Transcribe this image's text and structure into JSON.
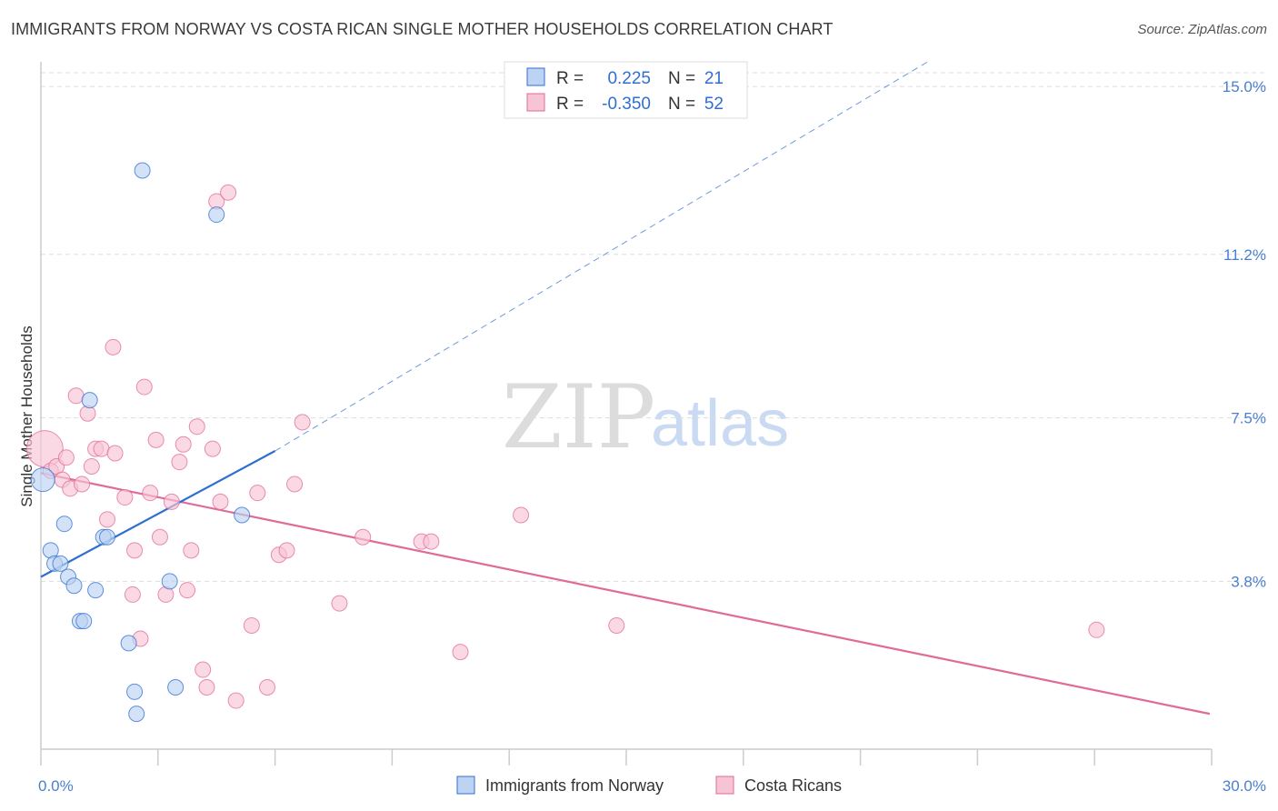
{
  "header": {
    "title": "IMMIGRANTS FROM NORWAY VS COSTA RICAN SINGLE MOTHER HOUSEHOLDS CORRELATION CHART",
    "source": "Source: ZipAtlas.com"
  },
  "watermark": {
    "zip": "ZIP",
    "atlas": "atlas"
  },
  "colors": {
    "blue": "#2f6fd0",
    "blue_fill": "#bcd3f3",
    "pink": "#e06a98",
    "pink_fill": "#f7c4d5",
    "tick_text": "#4a7fd0",
    "grid": "#dddddd"
  },
  "legend": {
    "rows": [
      {
        "r_label": "R =",
        "r_value": "0.225",
        "n_label": "N =",
        "n_value": "21"
      },
      {
        "r_label": "R =",
        "r_value": "-0.350",
        "n_label": "N =",
        "n_value": "52"
      }
    ]
  },
  "bottom_legend": [
    "Immigrants from Norway",
    "Costa Ricans"
  ],
  "chart_data": {
    "type": "scatter",
    "title": "IMMIGRANTS FROM NORWAY VS COSTA RICAN SINGLE MOTHER HOUSEHOLDS CORRELATION CHART",
    "xlabel": "",
    "ylabel": "Single Mother Households",
    "xlim": [
      0,
      30
    ],
    "ylim": [
      0,
      15.6
    ],
    "x_tick_labels": [
      {
        "value": 0,
        "label": "0.0%"
      },
      {
        "value": 30,
        "label": "30.0%"
      }
    ],
    "y_tick_labels": [
      {
        "value": 3.8,
        "label": "3.8%"
      },
      {
        "value": 7.5,
        "label": "7.5%"
      },
      {
        "value": 11.2,
        "label": "11.2%"
      },
      {
        "value": 15.0,
        "label": "15.0%"
      }
    ],
    "grid": true,
    "legend_position": "top-center",
    "series": [
      {
        "name": "Immigrants from Norway",
        "color": "#2f6fd0",
        "r": 0.225,
        "n": 21,
        "points": [
          [
            0.05,
            6.1
          ],
          [
            0.25,
            4.5
          ],
          [
            0.35,
            4.2
          ],
          [
            0.5,
            4.2
          ],
          [
            0.6,
            5.1
          ],
          [
            0.7,
            3.9
          ],
          [
            0.85,
            3.7
          ],
          [
            1.0,
            2.9
          ],
          [
            1.1,
            2.9
          ],
          [
            1.25,
            7.9
          ],
          [
            1.4,
            3.6
          ],
          [
            1.6,
            4.8
          ],
          [
            1.7,
            4.8
          ],
          [
            2.25,
            2.4
          ],
          [
            2.4,
            1.3
          ],
          [
            2.45,
            0.8
          ],
          [
            2.6,
            13.1
          ],
          [
            3.3,
            3.8
          ],
          [
            3.45,
            1.4
          ],
          [
            4.5,
            12.1
          ],
          [
            5.15,
            5.3
          ]
        ],
        "trend": {
          "x0": 0,
          "y0": 3.9,
          "x1": 6.0,
          "y1": 6.75,
          "dashed_to_x": 22.8,
          "dashed_to_y": 15.6
        }
      },
      {
        "name": "Costa Ricans",
        "color": "#e06a98",
        "r": -0.35,
        "n": 52,
        "points": [
          [
            0.1,
            6.8
          ],
          [
            0.25,
            6.3
          ],
          [
            0.4,
            6.4
          ],
          [
            0.55,
            6.1
          ],
          [
            0.65,
            6.6
          ],
          [
            0.75,
            5.9
          ],
          [
            0.9,
            8.0
          ],
          [
            1.05,
            6.0
          ],
          [
            1.2,
            7.6
          ],
          [
            1.3,
            6.4
          ],
          [
            1.4,
            6.8
          ],
          [
            1.55,
            6.8
          ],
          [
            1.7,
            5.2
          ],
          [
            1.85,
            9.1
          ],
          [
            1.9,
            6.7
          ],
          [
            2.15,
            5.7
          ],
          [
            2.35,
            3.5
          ],
          [
            2.4,
            4.5
          ],
          [
            2.55,
            2.5
          ],
          [
            2.65,
            8.2
          ],
          [
            2.8,
            5.8
          ],
          [
            2.95,
            7.0
          ],
          [
            3.05,
            4.8
          ],
          [
            3.2,
            3.5
          ],
          [
            3.35,
            5.6
          ],
          [
            3.55,
            6.5
          ],
          [
            3.65,
            6.9
          ],
          [
            3.75,
            3.6
          ],
          [
            3.85,
            4.5
          ],
          [
            4.0,
            7.3
          ],
          [
            4.15,
            1.8
          ],
          [
            4.25,
            1.4
          ],
          [
            4.4,
            6.8
          ],
          [
            4.5,
            12.4
          ],
          [
            4.6,
            5.6
          ],
          [
            4.8,
            12.6
          ],
          [
            5.0,
            1.1
          ],
          [
            5.4,
            2.8
          ],
          [
            5.55,
            5.8
          ],
          [
            5.8,
            1.4
          ],
          [
            6.1,
            4.4
          ],
          [
            6.3,
            4.5
          ],
          [
            6.5,
            6.0
          ],
          [
            6.7,
            7.4
          ],
          [
            7.65,
            3.3
          ],
          [
            8.25,
            4.8
          ],
          [
            9.75,
            4.7
          ],
          [
            10.0,
            4.7
          ],
          [
            10.75,
            2.2
          ],
          [
            12.3,
            5.3
          ],
          [
            14.75,
            2.8
          ],
          [
            27.05,
            2.7
          ]
        ],
        "trend": {
          "x0": 0,
          "y0": 6.25,
          "x1": 29.95,
          "y1": 0.8
        }
      }
    ]
  }
}
